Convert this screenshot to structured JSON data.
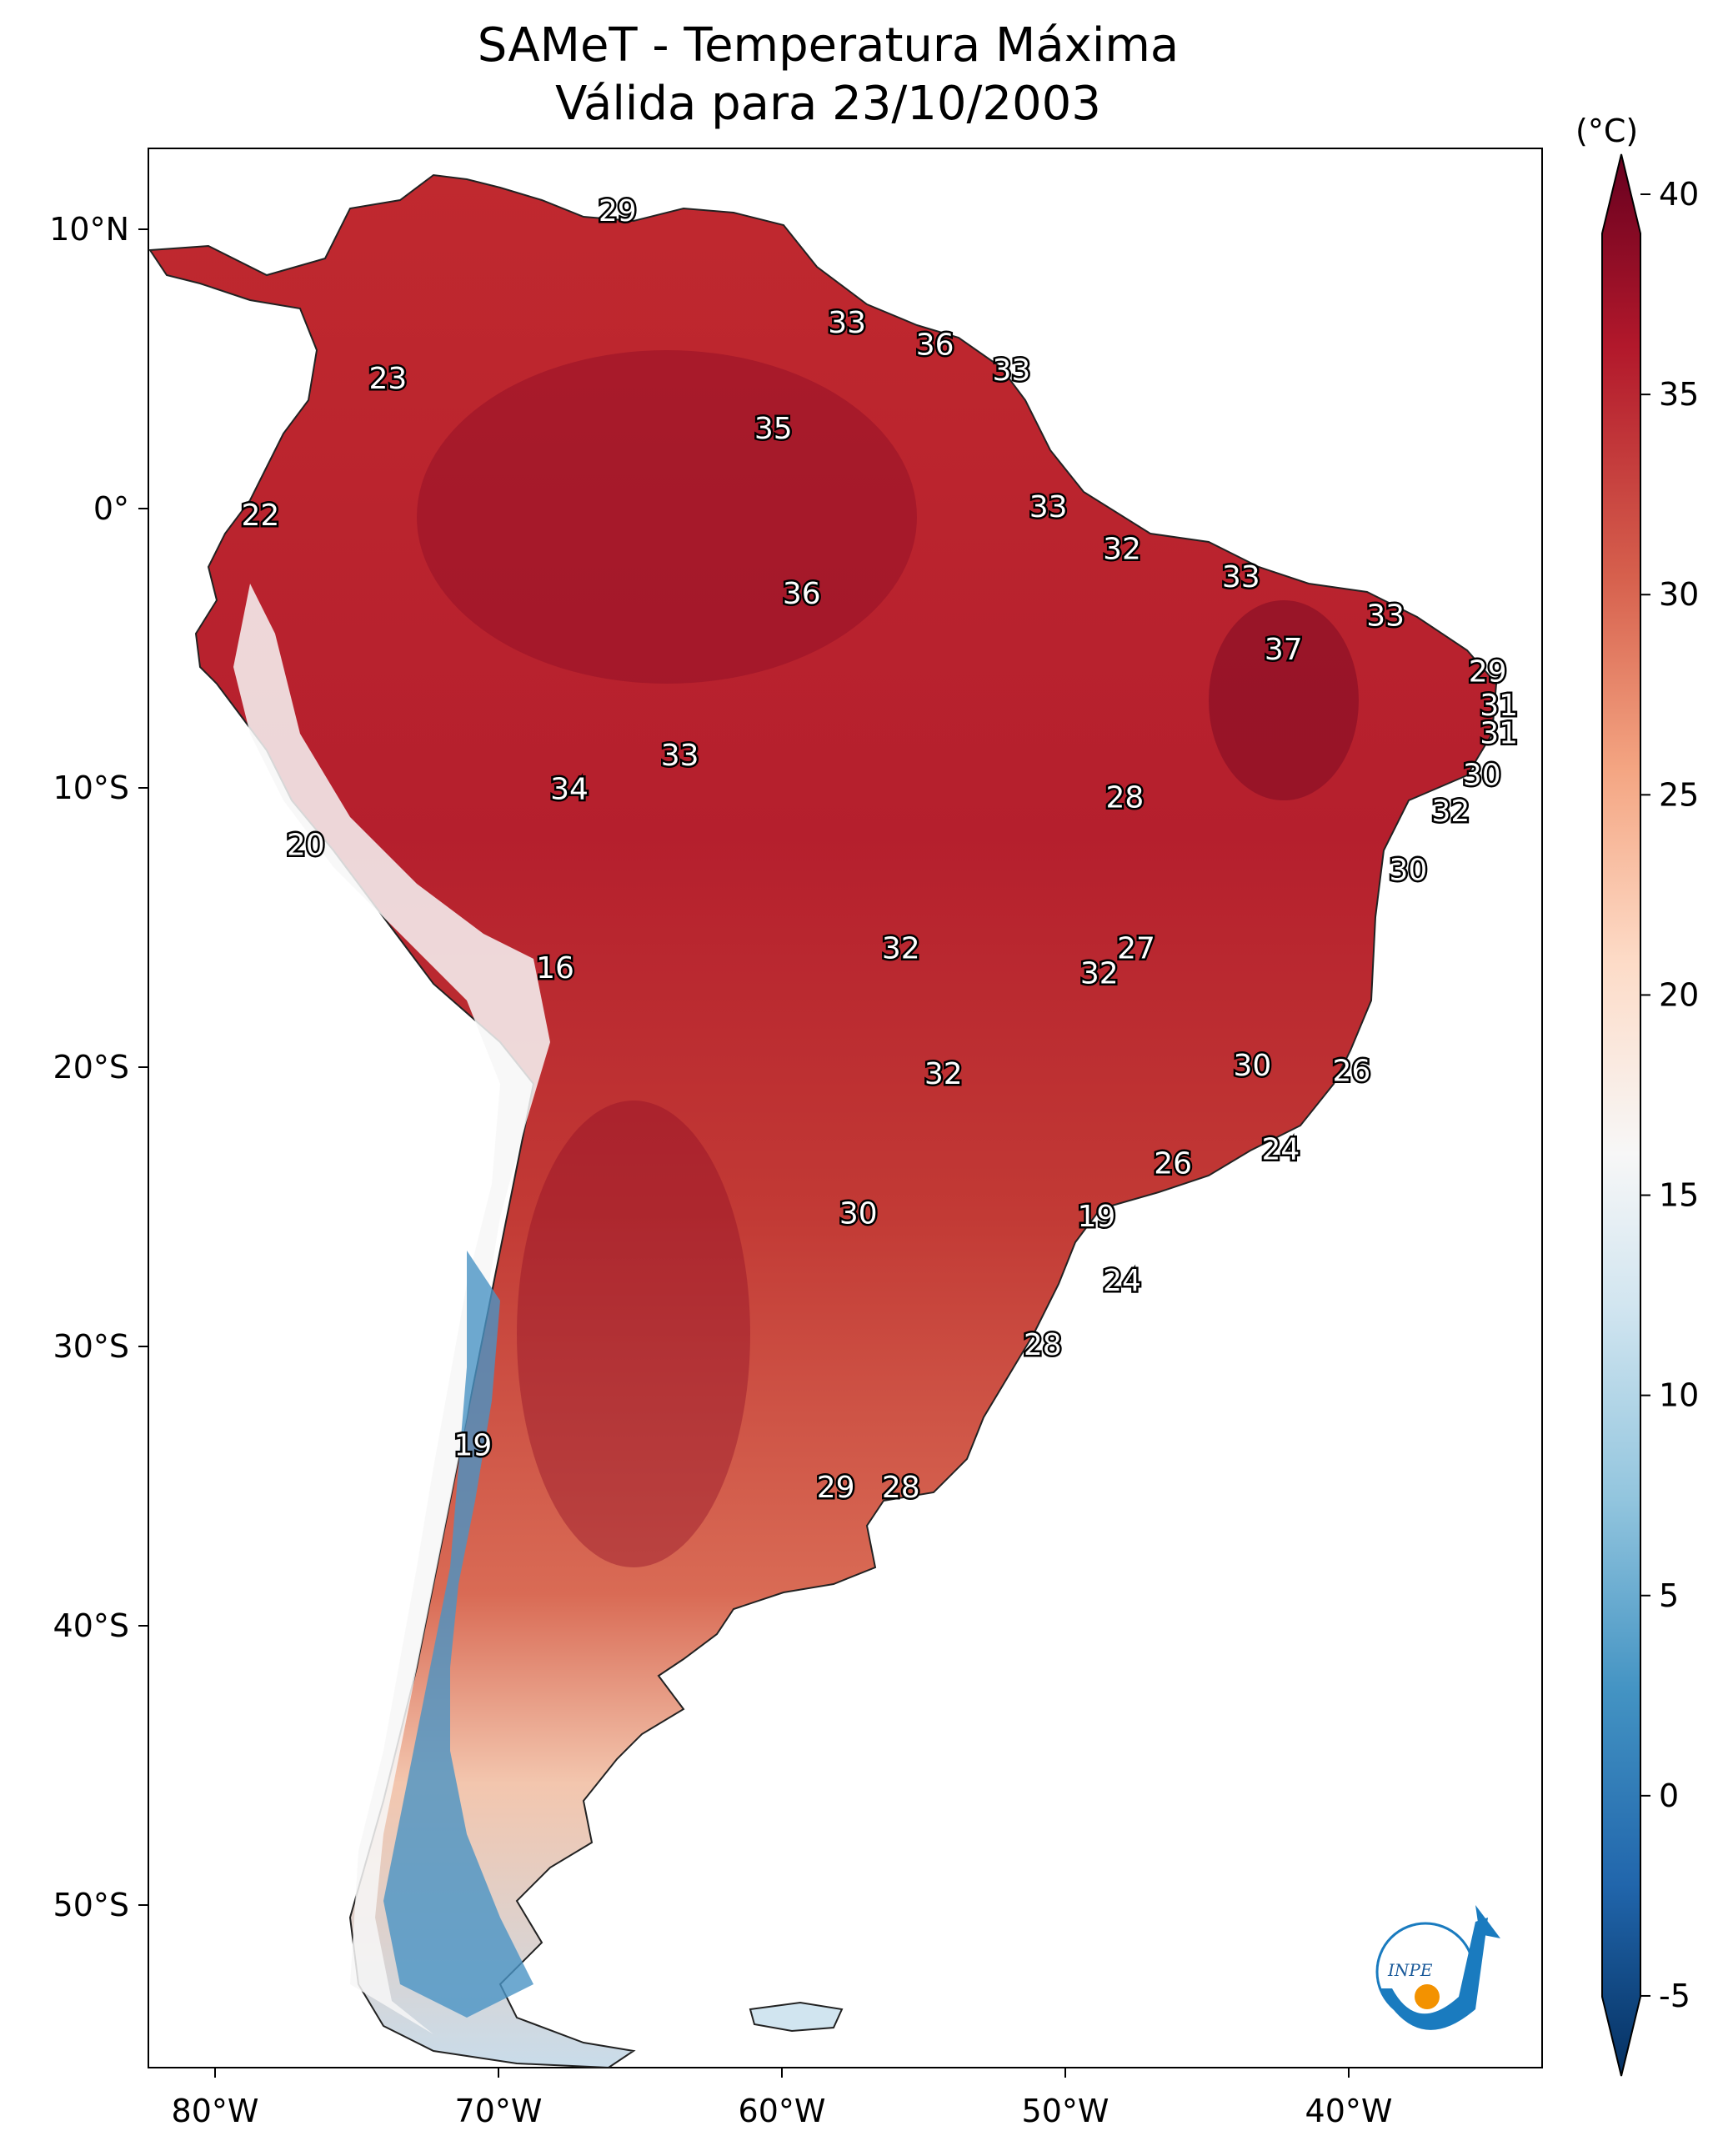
{
  "title": "SAMeT - Temperatura Máxima",
  "subtitle": "Válida para 23/10/2003",
  "colorbar": {
    "unit": "(°C)",
    "ticks": [
      40,
      35,
      30,
      25,
      20,
      15,
      10,
      5,
      0,
      -5
    ],
    "tick_labels": [
      "40",
      "35",
      "30",
      "25",
      "20",
      "15",
      "10",
      "5",
      "0",
      "-5"
    ],
    "range": [
      -7,
      41
    ],
    "colormap": "RdBu_r"
  },
  "axes": {
    "lon_ticks": [
      "80°W",
      "70°W",
      "60°W",
      "50°W",
      "40°W"
    ],
    "lat_ticks": [
      "10°N",
      "0°",
      "10°S",
      "20°S",
      "30°S",
      "40°S",
      "50°S"
    ]
  },
  "logo": {
    "text": "INPE"
  },
  "map_labels": [
    {
      "value": "29",
      "lon": -65.8,
      "lat": 10.6
    },
    {
      "value": "23",
      "lon": -73.9,
      "lat": 4.6
    },
    {
      "value": "33",
      "lon": -57.7,
      "lat": 6.6
    },
    {
      "value": "36",
      "lon": -54.6,
      "lat": 5.8
    },
    {
      "value": "33",
      "lon": -51.9,
      "lat": 4.9
    },
    {
      "value": "35",
      "lon": -60.3,
      "lat": 2.8
    },
    {
      "value": "22",
      "lon": -78.4,
      "lat": -0.3
    },
    {
      "value": "33",
      "lon": -50.6,
      "lat": 0.0
    },
    {
      "value": "32",
      "lon": -48.0,
      "lat": -1.5
    },
    {
      "value": "36",
      "lon": -59.3,
      "lat": -3.1
    },
    {
      "value": "33",
      "lon": -43.8,
      "lat": -2.5
    },
    {
      "value": "33",
      "lon": -38.7,
      "lat": -3.9
    },
    {
      "value": "37",
      "lon": -42.3,
      "lat": -5.1
    },
    {
      "value": "29",
      "lon": -35.1,
      "lat": -5.9
    },
    {
      "value": "31",
      "lon": -34.7,
      "lat": -7.1
    },
    {
      "value": "31",
      "lon": -34.7,
      "lat": -8.1
    },
    {
      "value": "33",
      "lon": -63.6,
      "lat": -8.9
    },
    {
      "value": "34",
      "lon": -67.5,
      "lat": -10.1
    },
    {
      "value": "30",
      "lon": -35.3,
      "lat": -9.6
    },
    {
      "value": "28",
      "lon": -47.9,
      "lat": -10.4
    },
    {
      "value": "32",
      "lon": -36.4,
      "lat": -10.9
    },
    {
      "value": "20",
      "lon": -76.8,
      "lat": -12.1
    },
    {
      "value": "30",
      "lon": -37.9,
      "lat": -13.0
    },
    {
      "value": "32",
      "lon": -55.8,
      "lat": -15.8
    },
    {
      "value": "27",
      "lon": -47.5,
      "lat": -15.8
    },
    {
      "value": "32",
      "lon": -48.8,
      "lat": -16.7
    },
    {
      "value": "16",
      "lon": -68.0,
      "lat": -16.5
    },
    {
      "value": "30",
      "lon": -43.4,
      "lat": -20.0
    },
    {
      "value": "26",
      "lon": -39.9,
      "lat": -20.2
    },
    {
      "value": "32",
      "lon": -54.3,
      "lat": -20.3
    },
    {
      "value": "24",
      "lon": -42.4,
      "lat": -23.0
    },
    {
      "value": "26",
      "lon": -46.2,
      "lat": -23.5
    },
    {
      "value": "30",
      "lon": -57.3,
      "lat": -25.3
    },
    {
      "value": "19",
      "lon": -48.9,
      "lat": -25.4
    },
    {
      "value": "24",
      "lon": -48.0,
      "lat": -27.7
    },
    {
      "value": "28",
      "lon": -50.8,
      "lat": -30.0
    },
    {
      "value": "19",
      "lon": -70.9,
      "lat": -33.6
    },
    {
      "value": "29",
      "lon": -58.1,
      "lat": -35.1
    },
    {
      "value": "28",
      "lon": -55.8,
      "lat": -35.1
    }
  ]
}
